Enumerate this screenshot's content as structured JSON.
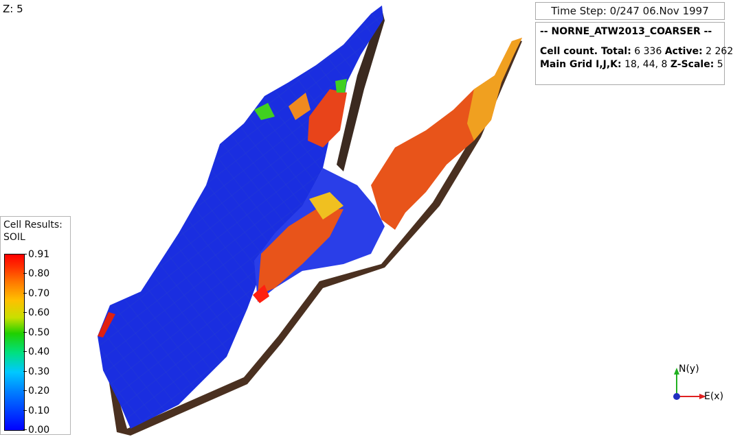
{
  "viewer": {
    "z_scale_label": "Z: 5",
    "time_step": "Time Step: 0/247 06.Nov 1997"
  },
  "info": {
    "title": "-- NORNE_ATW2013_COARSER --",
    "cell_count_label": "Cell count. Total:",
    "cell_total": "6 336",
    "active_label": "Active:",
    "active_value": "2 262",
    "main_grid_label": "Main Grid I,J,K:",
    "main_grid_value": "18, 44, 8",
    "zscale_label": "Z-Scale:",
    "zscale_value": "5"
  },
  "legend": {
    "title_line1": "Cell Results:",
    "title_line2": "SOIL",
    "ticks": [
      "0.91",
      "0.80",
      "0.70",
      "0.60",
      "0.50",
      "0.40",
      "0.30",
      "0.20",
      "0.10",
      "0.00"
    ],
    "min": 0.0,
    "max": 0.91
  },
  "axes": {
    "north_label": "N(y)",
    "east_label": "E(x)"
  },
  "colors": {
    "low": "#0000ff",
    "high": "#ff0000",
    "grid_line": "#1f3fbf",
    "side_brown": "#5a3a2a"
  }
}
